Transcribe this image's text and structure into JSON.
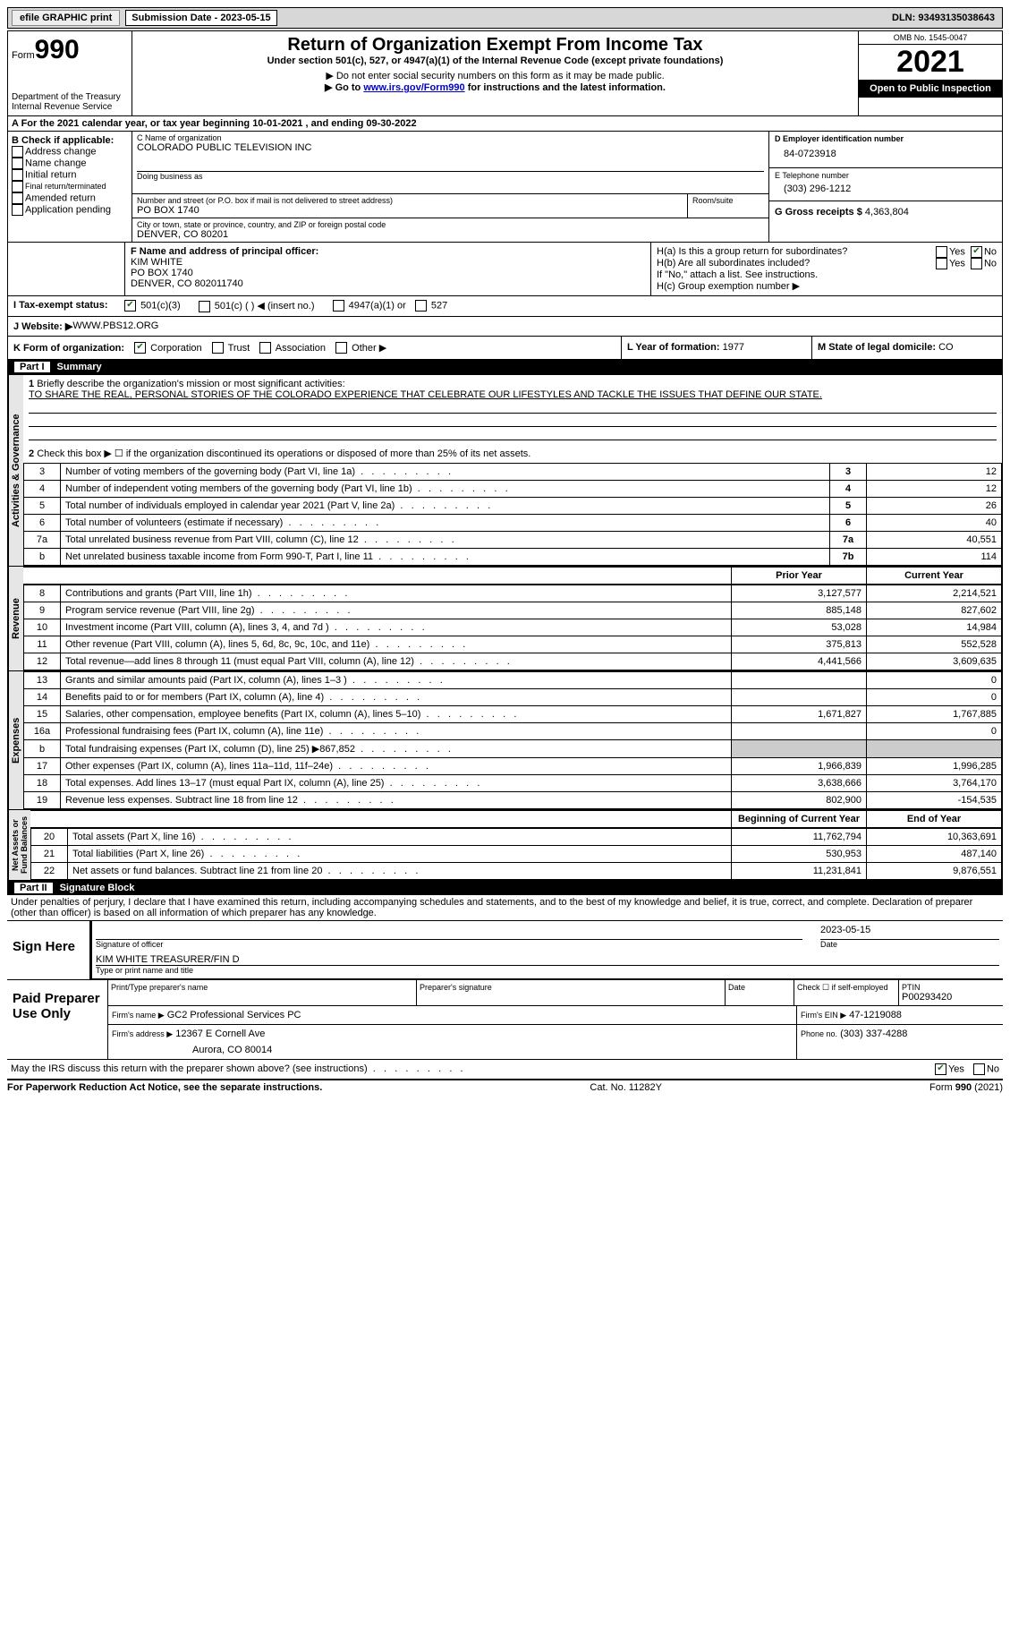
{
  "topbar": {
    "efile": "efile GRAPHIC print",
    "submission": "Submission Date - 2023-05-15",
    "dln": "DLN: 93493135038643"
  },
  "header": {
    "form_prefix": "Form",
    "form_no": "990",
    "dept": "Department of the Treasury",
    "irs": "Internal Revenue Service",
    "title": "Return of Organization Exempt From Income Tax",
    "subtitle": "Under section 501(c), 527, or 4947(a)(1) of the Internal Revenue Code (except private foundations)",
    "note1": "▶ Do not enter social security numbers on this form as it may be made public.",
    "note2_prefix": "▶ Go to ",
    "note2_link": "www.irs.gov/Form990",
    "note2_suffix": " for instructions and the latest information.",
    "omb": "OMB No. 1545-0047",
    "year": "2021",
    "open": "Open to Public Inspection"
  },
  "sectionA": "A For the 2021 calendar year, or tax year beginning 10-01-2021   , and ending 09-30-2022",
  "colB": {
    "label": "B Check if applicable:",
    "items": [
      "Address change",
      "Name change",
      "Initial return",
      "Final return/terminated",
      "Amended return",
      "Application pending"
    ]
  },
  "org": {
    "c_label": "C Name of organization",
    "name": "COLORADO PUBLIC TELEVISION INC",
    "dba_label": "Doing business as",
    "addr_label": "Number and street (or P.O. box if mail is not delivered to street address)",
    "room_label": "Room/suite",
    "addr": "PO BOX 1740",
    "city_label": "City or town, state or province, country, and ZIP or foreign postal code",
    "city": "DENVER, CO  80201"
  },
  "right": {
    "d_label": "D Employer identification number",
    "ein": "84-0723918",
    "e_label": "E Telephone number",
    "phone": "(303) 296-1212",
    "g_label": "G Gross receipts $",
    "gross": "4,363,804"
  },
  "officer": {
    "f_label": "F Name and address of principal officer:",
    "name": "KIM WHITE",
    "addr1": "PO BOX 1740",
    "addr2": "DENVER, CO  802011740"
  },
  "h": {
    "a": "H(a)  Is this a group return for subordinates?",
    "b": "H(b)  Are all subordinates included?",
    "bnote": "If \"No,\" attach a list. See instructions.",
    "c": "H(c)  Group exemption number ▶"
  },
  "taxstatus": {
    "i_label": "I  Tax-exempt status:",
    "opts": [
      "501(c)(3)",
      "501(c) (  ) ◀ (insert no.)",
      "4947(a)(1) or",
      "527"
    ]
  },
  "website": {
    "j_label": "J  Website: ▶",
    "val": " WWW.PBS12.ORG"
  },
  "k": {
    "label": "K Form of organization:",
    "opts": [
      "Corporation",
      "Trust",
      "Association",
      "Other ▶"
    ]
  },
  "l": {
    "label": "L Year of formation:",
    "val": "1977"
  },
  "m": {
    "label": "M State of legal domicile:",
    "val": "CO"
  },
  "part1": {
    "no": "Part I",
    "title": "Summary"
  },
  "summary": {
    "line1_label": "Briefly describe the organization's mission or most significant activities:",
    "line1_text": "TO SHARE THE REAL, PERSONAL STORIES OF THE COLORADO EXPERIENCE THAT CELEBRATE OUR LIFESTYLES AND TACKLE THE ISSUES THAT DEFINE OUR STATE.",
    "line2": "Check this box ▶ ☐ if the organization discontinued its operations or disposed of more than 25% of its net assets.",
    "rows_ag": [
      [
        "3",
        "Number of voting members of the governing body (Part VI, line 1a)",
        "3",
        "12"
      ],
      [
        "4",
        "Number of independent voting members of the governing body (Part VI, line 1b)",
        "4",
        "12"
      ],
      [
        "5",
        "Total number of individuals employed in calendar year 2021 (Part V, line 2a)",
        "5",
        "26"
      ],
      [
        "6",
        "Total number of volunteers (estimate if necessary)",
        "6",
        "40"
      ],
      [
        "7a",
        "Total unrelated business revenue from Part VIII, column (C), line 12",
        "7a",
        "40,551"
      ],
      [
        "b",
        "Net unrelated business taxable income from Form 990-T, Part I, line 11",
        "7b",
        "114"
      ]
    ],
    "py_label": "Prior Year",
    "cy_label": "Current Year",
    "rev_rows": [
      [
        "8",
        "Contributions and grants (Part VIII, line 1h)",
        "3,127,577",
        "2,214,521"
      ],
      [
        "9",
        "Program service revenue (Part VIII, line 2g)",
        "885,148",
        "827,602"
      ],
      [
        "10",
        "Investment income (Part VIII, column (A), lines 3, 4, and 7d )",
        "53,028",
        "14,984"
      ],
      [
        "11",
        "Other revenue (Part VIII, column (A), lines 5, 6d, 8c, 9c, 10c, and 11e)",
        "375,813",
        "552,528"
      ],
      [
        "12",
        "Total revenue—add lines 8 through 11 (must equal Part VIII, column (A), line 12)",
        "4,441,566",
        "3,609,635"
      ]
    ],
    "exp_rows": [
      [
        "13",
        "Grants and similar amounts paid (Part IX, column (A), lines 1–3 )",
        "",
        "0"
      ],
      [
        "14",
        "Benefits paid to or for members (Part IX, column (A), line 4)",
        "",
        "0"
      ],
      [
        "15",
        "Salaries, other compensation, employee benefits (Part IX, column (A), lines 5–10)",
        "1,671,827",
        "1,767,885"
      ],
      [
        "16a",
        "Professional fundraising fees (Part IX, column (A), line 11e)",
        "",
        "0"
      ],
      [
        "b",
        "Total fundraising expenses (Part IX, column (D), line 25) ▶867,852",
        "SHADE",
        "SHADE"
      ],
      [
        "17",
        "Other expenses (Part IX, column (A), lines 11a–11d, 11f–24e)",
        "1,966,839",
        "1,996,285"
      ],
      [
        "18",
        "Total expenses. Add lines 13–17 (must equal Part IX, column (A), line 25)",
        "3,638,666",
        "3,764,170"
      ],
      [
        "19",
        "Revenue less expenses. Subtract line 18 from line 12",
        "802,900",
        "-154,535"
      ]
    ],
    "boy_label": "Beginning of Current Year",
    "eoy_label": "End of Year",
    "na_rows": [
      [
        "20",
        "Total assets (Part X, line 16)",
        "11,762,794",
        "10,363,691"
      ],
      [
        "21",
        "Total liabilities (Part X, line 26)",
        "530,953",
        "487,140"
      ],
      [
        "22",
        "Net assets or fund balances. Subtract line 21 from line 20",
        "11,231,841",
        "9,876,551"
      ]
    ]
  },
  "part2": {
    "no": "Part II",
    "title": "Signature Block"
  },
  "sig": {
    "penalties": "Under penalties of perjury, I declare that I have examined this return, including accompanying schedules and statements, and to the best of my knowledge and belief, it is true, correct, and complete. Declaration of preparer (other than officer) is based on all information of which preparer has any knowledge.",
    "sign_here": "Sign Here",
    "sig_officer": "Signature of officer",
    "sig_date": "2023-05-15",
    "date": "Date",
    "typed": "KIM WHITE  TREASURER/FIN D",
    "typed_label": "Type or print name and title",
    "paid": "Paid Preparer Use Only",
    "prep_name_label": "Print/Type preparer's name",
    "prep_sig_label": "Preparer's signature",
    "date_label": "Date",
    "check_label": "Check ☐ if self-employed",
    "ptin_label": "PTIN",
    "ptin": "P00293420",
    "firm_name_label": "Firm's name    ▶",
    "firm_name": "GC2 Professional Services PC",
    "firm_ein_label": "Firm's EIN ▶",
    "firm_ein": "47-1219088",
    "firm_addr_label": "Firm's address ▶",
    "firm_addr1": "12367 E Cornell Ave",
    "firm_addr2": "Aurora, CO  80014",
    "phone_label": "Phone no.",
    "phone": "(303) 337-4288",
    "discuss": "May the IRS discuss this return with the preparer shown above? (see instructions)",
    "yes": "Yes",
    "no": "No"
  },
  "footer": {
    "pra": "For Paperwork Reduction Act Notice, see the separate instructions.",
    "cat": "Cat. No. 11282Y",
    "form": "Form 990 (2021)"
  },
  "labels": {
    "yes": "Yes",
    "no": "No"
  }
}
